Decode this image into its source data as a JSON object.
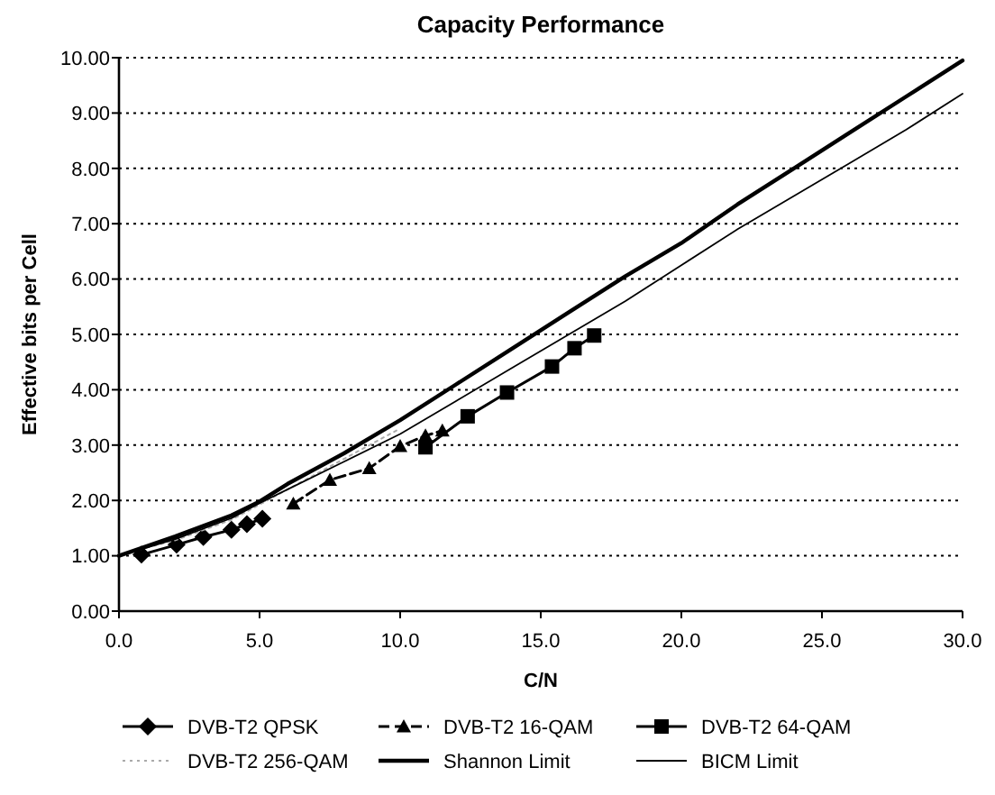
{
  "chart_data": {
    "type": "line",
    "title": "Capacity Performance",
    "xlabel": "C/N",
    "ylabel": "Effective bits per Cell",
    "xlim": [
      0,
      30
    ],
    "xticks": [
      {
        "value": 0,
        "label": "0.0"
      },
      {
        "value": 5,
        "label": "5.0"
      },
      {
        "value": 10,
        "label": "10.0"
      },
      {
        "value": 15,
        "label": "15.0"
      },
      {
        "value": 20,
        "label": "20.0"
      },
      {
        "value": 25,
        "label": "25.0"
      },
      {
        "value": 30,
        "label": "30.0"
      }
    ],
    "ylim": [
      0,
      10
    ],
    "yticks": [
      {
        "value": 0,
        "label": "0.00"
      },
      {
        "value": 1,
        "label": "1.00"
      },
      {
        "value": 2,
        "label": "2.00"
      },
      {
        "value": 3,
        "label": "3.00"
      },
      {
        "value": 4,
        "label": "4.00"
      },
      {
        "value": 5,
        "label": "5.00"
      },
      {
        "value": 6,
        "label": "6.00"
      },
      {
        "value": 7,
        "label": "7.00"
      },
      {
        "value": 8,
        "label": "8.00"
      },
      {
        "value": 9,
        "label": "9.00"
      },
      {
        "value": 10,
        "label": "10.00"
      }
    ],
    "grid": "y",
    "legend": "bottom",
    "series": [
      {
        "name": "DVB-T2 QPSK",
        "color": "#000000",
        "marker": "diamond",
        "line_style": "solid",
        "x": [
          0.8,
          2.05,
          3.0,
          4.0,
          4.55,
          5.1
        ],
        "values": [
          1.02,
          1.2,
          1.34,
          1.47,
          1.57,
          1.67
        ]
      },
      {
        "name": "DVB-T2 16-QAM",
        "color": "#000000",
        "marker": "triangle",
        "line_style": "dashed",
        "x": [
          6.2,
          7.5,
          8.9,
          10.0,
          10.9,
          11.5
        ],
        "values": [
          1.94,
          2.37,
          2.58,
          2.98,
          3.17,
          3.26
        ]
      },
      {
        "name": "DVB-T2 64-QAM",
        "color": "#000000",
        "marker": "square",
        "line_style": "solid",
        "x": [
          10.9,
          12.4,
          13.8,
          15.4,
          16.2,
          16.9
        ],
        "values": [
          2.96,
          3.52,
          3.95,
          4.42,
          4.75,
          4.98
        ]
      },
      {
        "name": "DVB-T2 256-QAM",
        "color": "#aaaaaa",
        "marker": "none",
        "line_style": "dotted",
        "x": [
          0,
          2,
          4,
          6,
          8,
          10
        ],
        "values": [
          1.02,
          1.28,
          1.65,
          2.2,
          2.75,
          3.3
        ]
      },
      {
        "name": "Shannon Limit",
        "color": "#000000",
        "marker": "none",
        "line_style": "solid",
        "x": [
          0,
          2,
          4,
          5,
          6,
          8,
          10,
          12,
          14,
          16,
          18,
          20,
          22,
          24,
          26,
          28,
          30
        ],
        "values": [
          1.0,
          1.35,
          1.73,
          1.98,
          2.3,
          2.85,
          3.45,
          4.1,
          4.75,
          5.4,
          6.05,
          6.65,
          7.35,
          8.0,
          8.65,
          9.3,
          9.95
        ]
      },
      {
        "name": "BICM Limit",
        "color": "#000000",
        "marker": "none",
        "line_style": "solid",
        "x": [
          0,
          2,
          4,
          5,
          6,
          8,
          10,
          12,
          14,
          16,
          18,
          20,
          22,
          24,
          26,
          28,
          30
        ],
        "values": [
          1.0,
          1.3,
          1.68,
          1.95,
          2.2,
          2.7,
          3.2,
          3.8,
          4.4,
          5.0,
          5.6,
          6.25,
          6.9,
          7.5,
          8.1,
          8.7,
          9.35
        ]
      }
    ]
  }
}
